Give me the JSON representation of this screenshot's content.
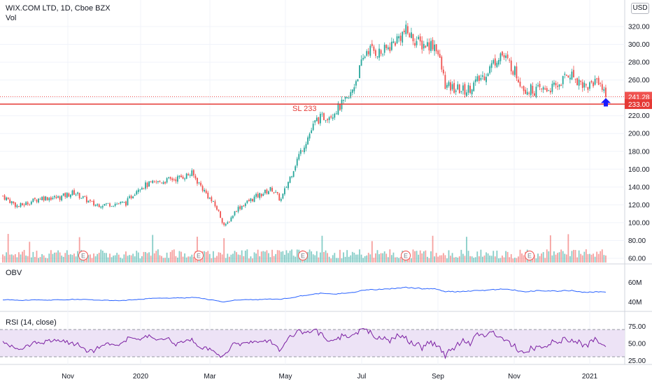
{
  "header": {
    "title": "WIX.COM LTD, 1D, Cboe BZX",
    "volume_label": "Vol",
    "currency": "USD"
  },
  "indicators": {
    "obv_label": "OBV",
    "rsi_label": "RSI (14, close)"
  },
  "colors": {
    "up": "#26a69a",
    "down": "#ef5350",
    "obv": "#2962ff",
    "rsi": "#7b1fa2",
    "rsi_band": "#ede3f6",
    "stop": "#e53935",
    "arrow": "#1a1aff"
  },
  "chart_data": [
    {
      "type": "candlestick",
      "title": "WIX.COM LTD, 1D, Cboe BZX",
      "x_tick_labels": [
        "Nov",
        "2020",
        "Mar",
        "May",
        "Jul",
        "Sep",
        "Nov",
        "2021"
      ],
      "y_tick_labels": [
        "60.00",
        "80.00",
        "100.00",
        "120.00",
        "140.00",
        "160.00",
        "180.00",
        "200.00",
        "220.00",
        "240.00",
        "260.00",
        "280.00",
        "300.00",
        "320.00"
      ],
      "ylim": [
        54,
        328
      ],
      "last_price_label": "241.28",
      "last_price": 241.28,
      "stop_loss_label": "233.00",
      "stop_loss_level": 233,
      "stop_loss_annotation": "SL 233",
      "earnings_marker": "E",
      "close_path": [
        [
          "2019-09-25",
          130
        ],
        [
          "2019-10-07",
          118
        ],
        [
          "2019-10-25",
          128
        ],
        [
          "2019-11-08",
          128
        ],
        [
          "2019-11-20",
          134
        ],
        [
          "2019-12-06",
          120
        ],
        [
          "2019-12-31",
          122
        ],
        [
          "2020-01-10",
          140
        ],
        [
          "2020-01-24",
          145
        ],
        [
          "2020-02-10",
          150
        ],
        [
          "2020-02-21",
          155
        ],
        [
          "2020-03-02",
          135
        ],
        [
          "2020-03-12",
          115
        ],
        [
          "2020-03-18",
          95
        ],
        [
          "2020-03-27",
          115
        ],
        [
          "2020-04-10",
          128
        ],
        [
          "2020-04-24",
          138
        ],
        [
          "2020-05-01",
          125
        ],
        [
          "2020-05-15",
          175
        ],
        [
          "2020-05-29",
          215
        ],
        [
          "2020-06-10",
          222
        ],
        [
          "2020-06-24",
          240
        ],
        [
          "2020-07-08",
          295
        ],
        [
          "2020-07-20",
          290
        ],
        [
          "2020-07-31",
          305
        ],
        [
          "2020-08-07",
          315
        ],
        [
          "2020-08-19",
          300
        ],
        [
          "2020-08-31",
          300
        ],
        [
          "2020-09-08",
          252
        ],
        [
          "2020-09-24",
          248
        ],
        [
          "2020-10-08",
          265
        ],
        [
          "2020-10-21",
          290
        ],
        [
          "2020-10-30",
          275
        ],
        [
          "2020-11-09",
          250
        ],
        [
          "2020-11-20",
          248
        ],
        [
          "2020-12-04",
          252
        ],
        [
          "2020-12-14",
          268
        ],
        [
          "2020-12-28",
          252
        ],
        [
          "2021-01-06",
          262
        ],
        [
          "2021-01-12",
          241
        ]
      ]
    },
    {
      "type": "line",
      "name": "OBV",
      "y_tick_labels": [
        "40M",
        "60M"
      ]
    },
    {
      "type": "line",
      "name": "RSI (14, close)",
      "y_tick_labels": [
        "25.00",
        "50.00",
        "75.00"
      ],
      "band": [
        30,
        70
      ]
    }
  ]
}
